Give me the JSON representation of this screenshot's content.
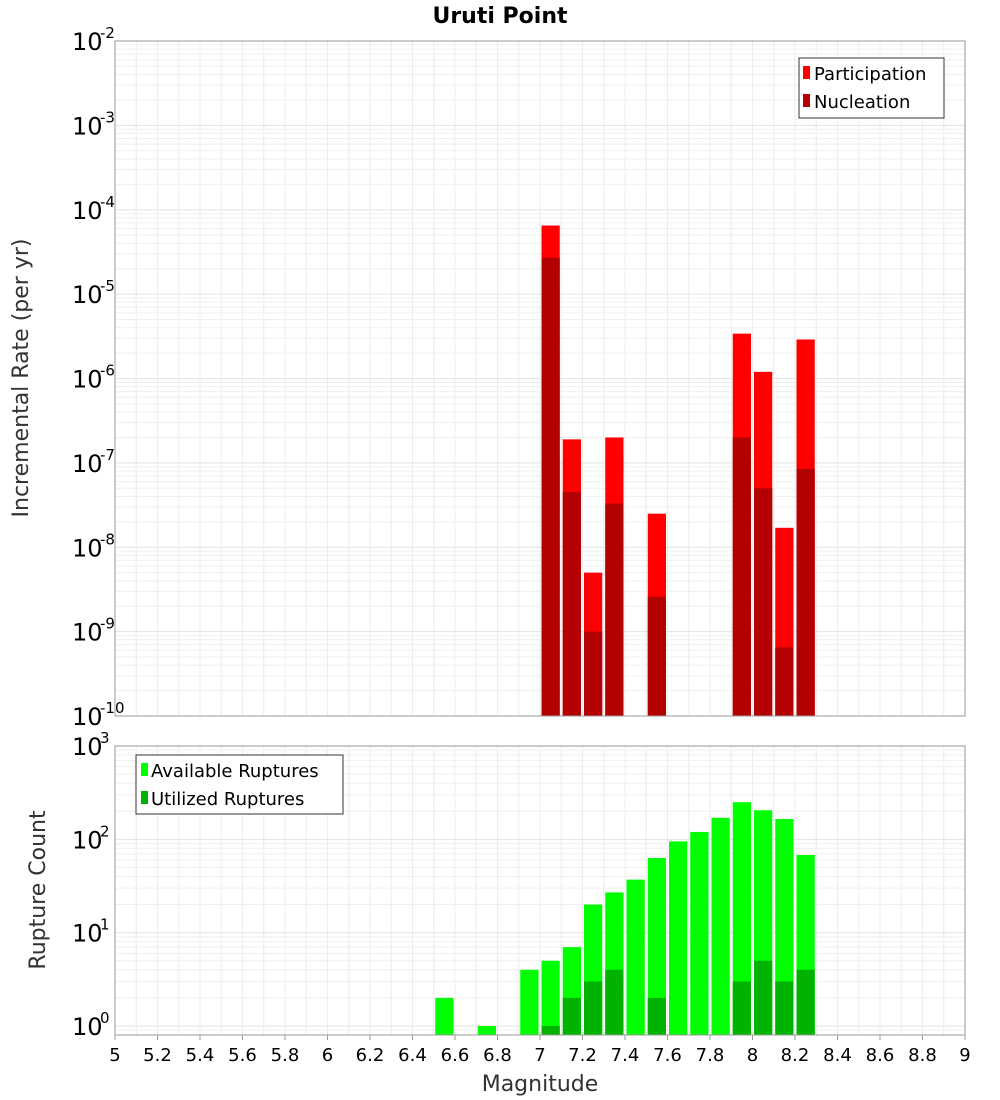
{
  "chart_data": {
    "title": "Uruti Point",
    "xlabel": "Magnitude",
    "x_ticks": [
      "5",
      "5.2",
      "5.4",
      "5.6",
      "5.8",
      "6",
      "6.2",
      "6.4",
      "6.6",
      "6.8",
      "7",
      "7.2",
      "7.4",
      "7.6",
      "7.8",
      "8",
      "8.2",
      "8.4",
      "8.6",
      "8.8",
      "9"
    ],
    "xlim": [
      5,
      9
    ],
    "grid": true,
    "panels": [
      {
        "type": "bar",
        "log_scale": true,
        "ylabel": "Incremental Rate (per yr)",
        "ylim": [
          1e-10,
          0.01
        ],
        "y_ticks": [
          {
            "base": "10",
            "exp": "-10"
          },
          {
            "base": "10",
            "exp": "-9"
          },
          {
            "base": "10",
            "exp": "-8"
          },
          {
            "base": "10",
            "exp": "-7"
          },
          {
            "base": "10",
            "exp": "-6"
          },
          {
            "base": "10",
            "exp": "-5"
          },
          {
            "base": "10",
            "exp": "-4"
          },
          {
            "base": "10",
            "exp": "-3"
          },
          {
            "base": "10",
            "exp": "-2"
          }
        ],
        "legend_position": "top-right",
        "x": [
          7.05,
          7.15,
          7.25,
          7.35,
          7.55,
          7.95,
          8.05,
          8.15,
          8.25
        ],
        "series": [
          {
            "name": "Participation",
            "color": "#ff0000",
            "values": [
              6.5e-05,
              1.9e-07,
              5e-09,
              2e-07,
              2.5e-08,
              3.4e-06,
              1.2e-06,
              1.7e-08,
              2.9e-06
            ]
          },
          {
            "name": "Nucleation",
            "color": "#b30000",
            "values": [
              2.7e-05,
              4.5e-08,
              1e-09,
              3.3e-08,
              2.6e-09,
              2e-07,
              5e-08,
              6.5e-10,
              8.5e-08
            ]
          }
        ]
      },
      {
        "type": "bar",
        "log_scale": true,
        "ylabel": "Rupture Count",
        "ylim": [
          0.8,
          1000
        ],
        "y_ticks": [
          {
            "base": "10",
            "exp": "0"
          },
          {
            "base": "10",
            "exp": "1"
          },
          {
            "base": "10",
            "exp": "2"
          },
          {
            "base": "10",
            "exp": "3"
          }
        ],
        "legend_position": "top-left",
        "x": [
          6.55,
          6.75,
          6.95,
          7.05,
          7.15,
          7.25,
          7.35,
          7.45,
          7.55,
          7.65,
          7.75,
          7.85,
          7.95,
          8.05,
          8.15,
          8.25
        ],
        "series": [
          {
            "name": "Available Ruptures",
            "color": "#00ff00",
            "values": [
              2,
              1,
              4,
              5,
              7,
              20,
              27,
              37,
              63,
              95,
              120,
              170,
              250,
              205,
              165,
              68
            ]
          },
          {
            "name": "Utilized Ruptures",
            "color": "#00b300",
            "values": [
              null,
              null,
              null,
              1,
              2,
              3,
              4,
              null,
              2,
              null,
              null,
              null,
              3,
              5,
              3,
              4
            ]
          }
        ]
      }
    ]
  }
}
